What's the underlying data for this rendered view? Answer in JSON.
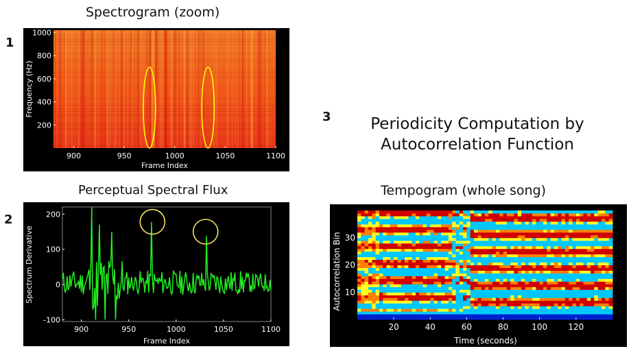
{
  "labels": {
    "n1": "1",
    "n2": "2",
    "n3": "3",
    "spec_title": "Spectrogram (zoom)",
    "flux_title": "Perceptual Spectral Flux",
    "tempo_title": "Tempogram (whole song)",
    "periodicity_line1": "Periodicity Computation by",
    "periodicity_line2": "Autocorrelation Function"
  },
  "chart_data": [
    {
      "type": "heatmap",
      "title": "Spectrogram (zoom)",
      "xlabel": "Frame Index",
      "ylabel": "Frequency (Hz)",
      "x_ticks": [
        "900",
        "950",
        "1000",
        "1050",
        "1100"
      ],
      "y_ticks": [
        "200",
        "400",
        "600",
        "800",
        "1000"
      ],
      "xlim": [
        880,
        1100
      ],
      "ylim": [
        0,
        1020
      ],
      "colormap": [
        "#c00000",
        "#e63c10",
        "#f57a1e",
        "#ffb040"
      ],
      "highlights": [
        {
          "shape": "ellipse",
          "x": 975,
          "y_range": [
            0,
            700
          ],
          "color": "#ffff00"
        },
        {
          "shape": "ellipse",
          "x": 1033,
          "y_range": [
            0,
            700
          ],
          "color": "#ffff00"
        }
      ]
    },
    {
      "type": "line",
      "title": "Perceptual Spectral Flux",
      "xlabel": "Frame Index",
      "ylabel": "Spectrum Derivative",
      "x_ticks": [
        "900",
        "950",
        "1000",
        "1050",
        "1100"
      ],
      "y_ticks": [
        "-100",
        "0",
        "100",
        "200"
      ],
      "xlim": [
        880,
        1100
      ],
      "ylim": [
        -105,
        220
      ],
      "line_color": "#22ee22",
      "peaks": [
        {
          "x": 911,
          "y": 220
        },
        {
          "x": 915,
          "y": -100
        },
        {
          "x": 919,
          "y": 170
        },
        {
          "x": 925,
          "y": -100
        },
        {
          "x": 932,
          "y": 150
        },
        {
          "x": 936,
          "y": -100
        },
        {
          "x": 974,
          "y": 178
        },
        {
          "x": 1032,
          "y": 138
        }
      ],
      "highlights": [
        {
          "shape": "circle",
          "x": 975,
          "y": 178,
          "color": "#f0e060"
        },
        {
          "shape": "circle",
          "x": 1031,
          "y": 150,
          "color": "#f0e060"
        }
      ]
    },
    {
      "type": "heatmap",
      "title": "Tempogram (whole song)",
      "xlabel": "Time (seconds)",
      "ylabel": "Autocorrelation Bin",
      "x_ticks": [
        "20",
        "40",
        "60",
        "80",
        "100",
        "120"
      ],
      "y_ticks": [
        "10",
        "20",
        "30"
      ],
      "xlim": [
        0,
        140
      ],
      "ylim": [
        0,
        40
      ],
      "colormap": [
        "#0020d0",
        "#00c8ff",
        "#ffff20",
        "#ff8000",
        "#d00000"
      ]
    }
  ]
}
